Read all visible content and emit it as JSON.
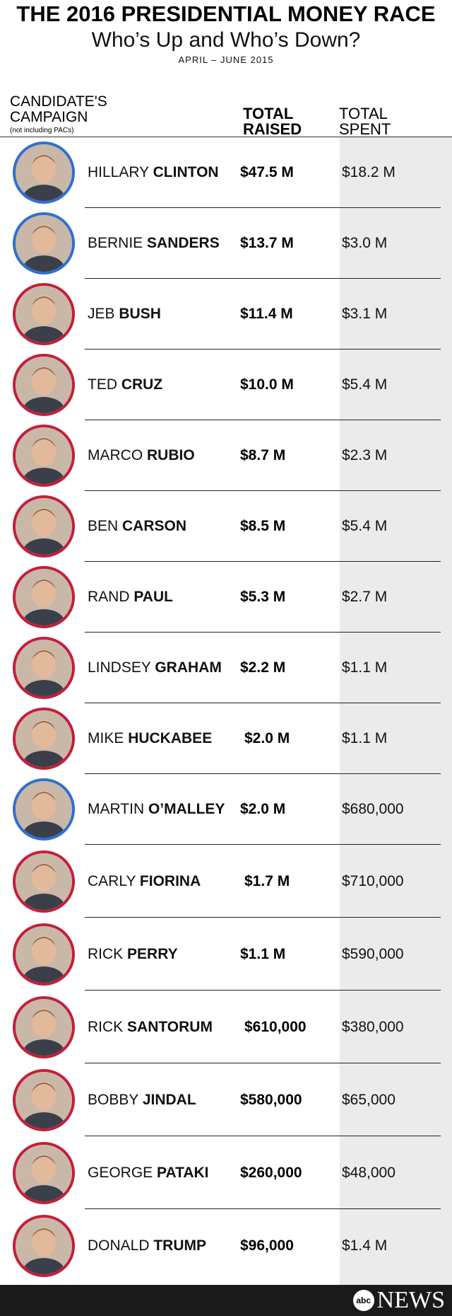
{
  "header": {
    "title": "THE 2016 PRESIDENTIAL MONEY RACE",
    "subtitle": "Who’s Up and Who’s Down?",
    "dates": "APRIL – JUNE 2015"
  },
  "columns": {
    "candidate_line1": "CANDIDATE'S",
    "candidate_line2": "CAMPAIGN",
    "candidate_note": "(not including PACs)",
    "raised_line1": "TOTAL",
    "raised_line2": "RAISED",
    "spent_line1": "TOTAL",
    "spent_line2": "SPENT"
  },
  "colors": {
    "democrat": "#2f6fd0",
    "republican": "#c41e3a",
    "spent_column": "#ebebeb",
    "footer": "#1a1a1a"
  },
  "chart_data": {
    "type": "table",
    "columns": [
      "CANDIDATE'S CAMPAIGN",
      "TOTAL RAISED",
      "TOTAL SPENT"
    ],
    "rows": [
      {
        "first": "HILLARY",
        "last": "CLINTON",
        "party": "democrat",
        "raised": "$47.5 M",
        "spent": "$18.2 M",
        "raised_value": 47500000,
        "spent_value": 18200000
      },
      {
        "first": "BERNIE",
        "last": "SANDERS",
        "party": "democrat",
        "raised": "$13.7 M",
        "spent": "$3.0 M",
        "raised_value": 13700000,
        "spent_value": 3000000
      },
      {
        "first": "JEB",
        "last": "BUSH",
        "party": "republican",
        "raised": "$11.4 M",
        "spent": "$3.1 M",
        "raised_value": 11400000,
        "spent_value": 3100000
      },
      {
        "first": "TED",
        "last": "CRUZ",
        "party": "republican",
        "raised": "$10.0 M",
        "spent": "$5.4 M",
        "raised_value": 10000000,
        "spent_value": 5400000
      },
      {
        "first": "MARCO",
        "last": "RUBIO",
        "party": "republican",
        "raised": "$8.7 M",
        "spent": "$2.3 M",
        "raised_value": 8700000,
        "spent_value": 2300000
      },
      {
        "first": "BEN",
        "last": "CARSON",
        "party": "republican",
        "raised": "$8.5 M",
        "spent": "$5.4 M",
        "raised_value": 8500000,
        "spent_value": 5400000
      },
      {
        "first": "RAND",
        "last": "PAUL",
        "party": "republican",
        "raised": "$5.3 M",
        "spent": "$2.7 M",
        "raised_value": 5300000,
        "spent_value": 2700000
      },
      {
        "first": "LINDSEY",
        "last": "GRAHAM",
        "party": "republican",
        "raised": "$2.2 M",
        "spent": "$1.1 M",
        "raised_value": 2200000,
        "spent_value": 1100000
      },
      {
        "first": "MIKE",
        "last": "HUCKABEE",
        "party": "republican",
        "raised": "$2.0 M",
        "spent": "$1.1 M",
        "raised_value": 2000000,
        "spent_value": 1100000
      },
      {
        "first": "MARTIN",
        "last": "O’MALLEY",
        "party": "democrat",
        "raised": "$2.0 M",
        "spent": "$680,000",
        "raised_value": 2000000,
        "spent_value": 680000
      },
      {
        "first": "CARLY",
        "last": "FIORINA",
        "party": "republican",
        "raised": "$1.7 M",
        "spent": "$710,000",
        "raised_value": 1700000,
        "spent_value": 710000
      },
      {
        "first": "RICK",
        "last": "PERRY",
        "party": "republican",
        "raised": "$1.1 M",
        "spent": "$590,000",
        "raised_value": 1100000,
        "spent_value": 590000
      },
      {
        "first": "RICK",
        "last": "SANTORUM",
        "party": "republican",
        "raised": "$610,000",
        "spent": "$380,000",
        "raised_value": 610000,
        "spent_value": 380000
      },
      {
        "first": "BOBBY",
        "last": "JINDAL",
        "party": "republican",
        "raised": "$580,000",
        "spent": "$65,000",
        "raised_value": 580000,
        "spent_value": 65000
      },
      {
        "first": "GEORGE",
        "last": "PATAKI",
        "party": "republican",
        "raised": "$260,000",
        "spent": "$48,000",
        "raised_value": 260000,
        "spent_value": 48000
      },
      {
        "first": "DONALD",
        "last": "TRUMP",
        "party": "republican",
        "raised": "$96,000",
        "spent": "$1.4 M",
        "raised_value": 96000,
        "spent_value": 1400000
      }
    ]
  },
  "footer": {
    "logo_small": "abc",
    "logo_text": "NEWS"
  }
}
